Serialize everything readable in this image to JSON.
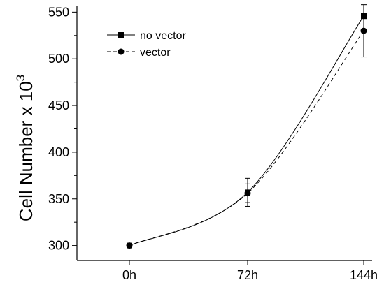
{
  "chart_data": {
    "type": "line",
    "title": "",
    "xlabel": "",
    "ylabel": "Cell Number x 10",
    "ylabel_superscript": "3",
    "categories": [
      "0h",
      "72h",
      "144h"
    ],
    "yticks": [
      300,
      350,
      400,
      450,
      500,
      550
    ],
    "ylim": [
      284,
      557
    ],
    "grid": false,
    "legend_position": "top-left",
    "series": [
      {
        "name": "no vector",
        "marker": "square",
        "line_style": "solid",
        "color": "#000000",
        "values": [
          300,
          357,
          546
        ],
        "errors": [
          1,
          15,
          3
        ]
      },
      {
        "name": "vector",
        "marker": "circle",
        "line_style": "dashed",
        "color": "#000000",
        "values": [
          300,
          356,
          530
        ],
        "errors": [
          1,
          10,
          28
        ]
      }
    ]
  }
}
